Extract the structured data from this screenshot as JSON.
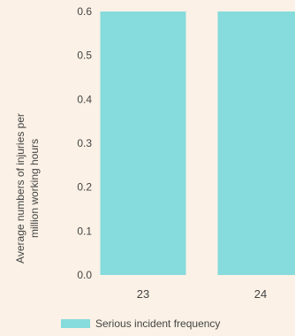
{
  "chart_data": {
    "type": "bar",
    "categories": [
      "23",
      "24"
    ],
    "series": [
      {
        "name": "Serious incident frequency",
        "values": [
          0.6,
          0.6
        ],
        "color": "#86dbdc"
      }
    ],
    "ylabel_lines": [
      "Average numbers of injuries per",
      "million working hours"
    ],
    "xlabel": "",
    "title": "",
    "ylim": [
      0,
      0.6
    ],
    "yticks": [
      "0.0",
      "0.1",
      "0.2",
      "0.3",
      "0.4",
      "0.5",
      "0.6"
    ],
    "grid": false,
    "legend_position": "bottom"
  },
  "colors": {
    "background": "#fbf1e6",
    "text": "#444444",
    "bar": "#86dbdc"
  }
}
